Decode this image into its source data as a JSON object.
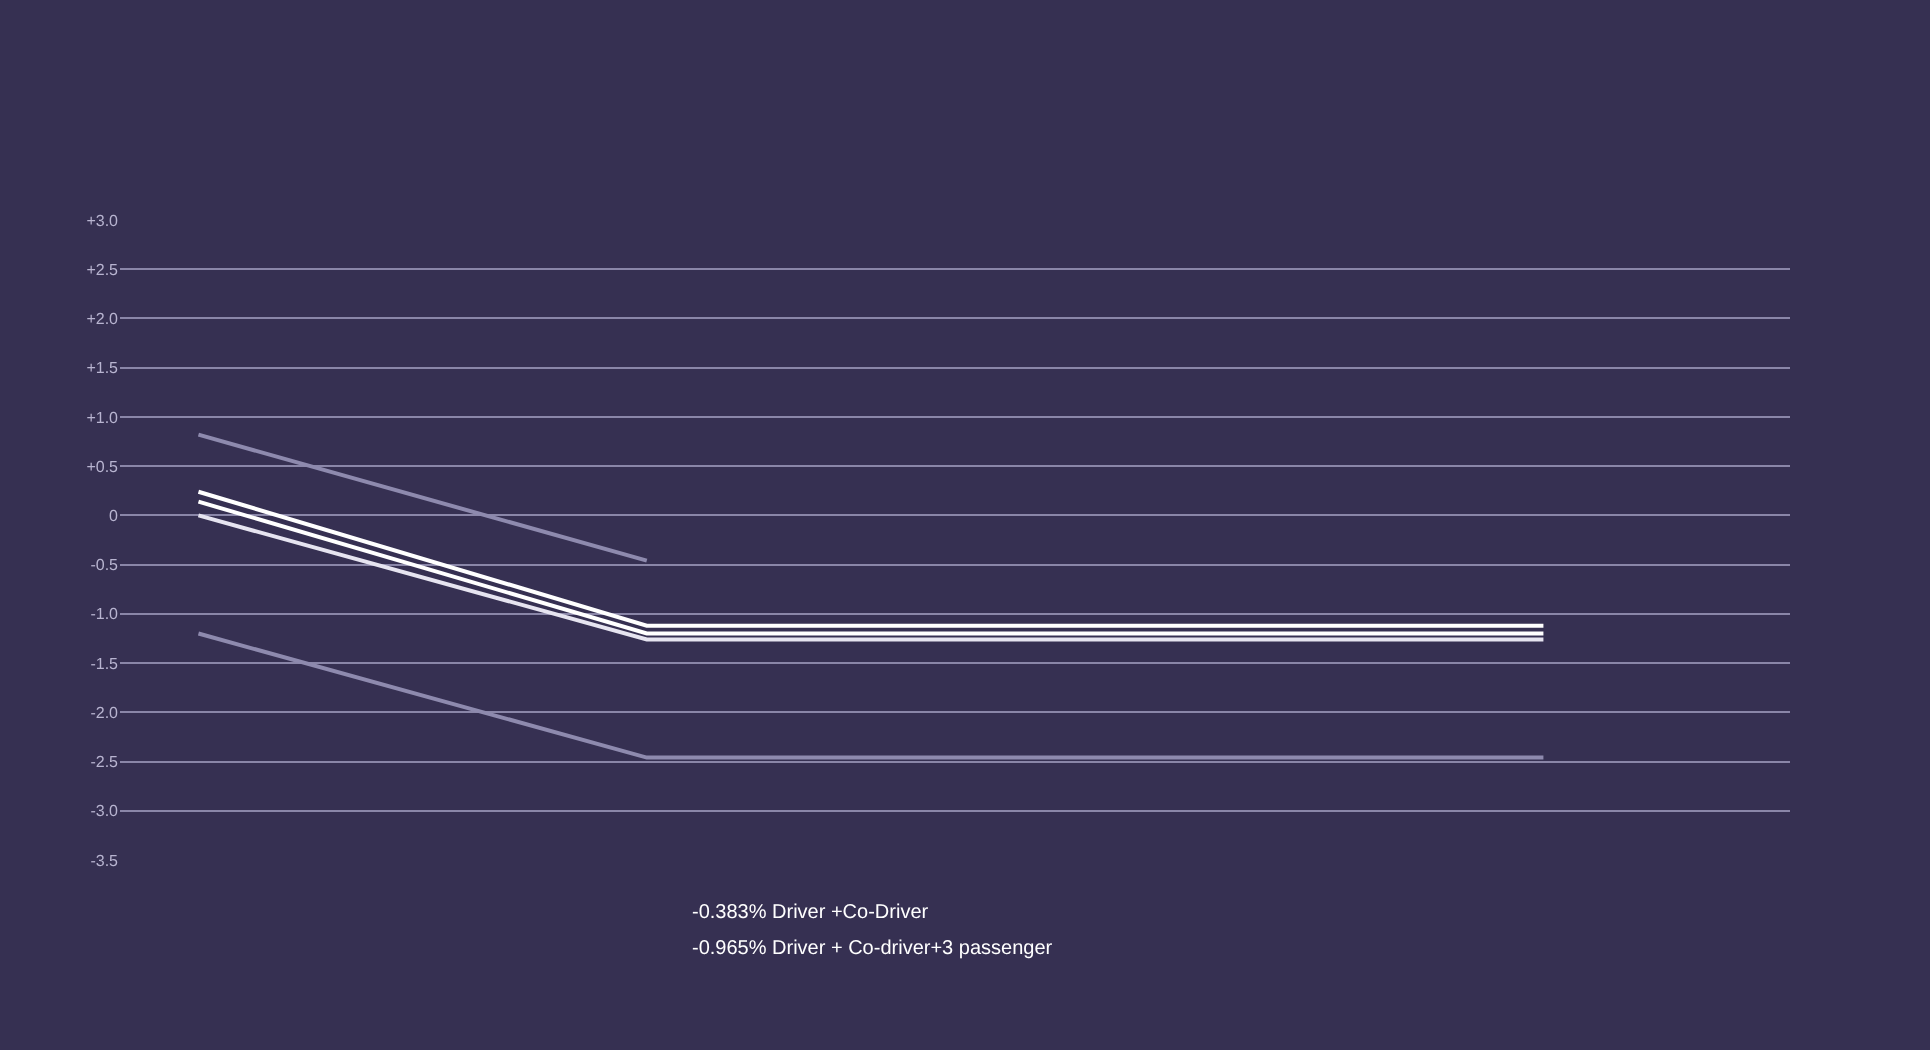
{
  "chart_data": {
    "type": "line",
    "categories": [
      null,
      null,
      null,
      null,
      null,
      null,
      null,
      null,
      null,
      null,
      null,
      null,
      null
    ],
    "series": [
      {
        "color": "#ffffff",
        "values": [
          0.24,
          null,
          null,
          null,
          -1.12,
          -1.12,
          -1.12,
          -1.12,
          -1.12,
          -1.12,
          -1.12,
          -1.12,
          -1.12
        ]
      },
      {
        "color": "#ffffff",
        "values": [
          0.14,
          null,
          null,
          null,
          -1.2,
          -1.2,
          -1.2,
          -1.2,
          -1.2,
          -1.2,
          -1.2,
          -1.2,
          -1.2
        ]
      },
      {
        "color": "#e6e4f0",
        "values": [
          0.0,
          null,
          null,
          null,
          -1.26,
          -1.26,
          -1.26,
          -1.26,
          -1.26,
          -1.26,
          -1.26,
          -1.26,
          -1.26
        ]
      },
      {
        "color": "#8e8aae",
        "values": [
          0.82,
          null,
          null,
          null,
          -0.46,
          null,
          null,
          null,
          null,
          null,
          null,
          null,
          null
        ]
      },
      {
        "color": "#8e8aae",
        "values": [
          -1.2,
          null,
          null,
          null,
          -2.46,
          -2.46,
          -2.46,
          -2.46,
          -2.46,
          -2.46,
          -2.46,
          -2.46,
          -2.46
        ]
      }
    ],
    "ylim": [
      -3.5,
      3
    ],
    "yticks": [
      {
        "value": 3,
        "label": "+3.0"
      },
      {
        "value": 2.5,
        "label": "+2.5"
      },
      {
        "value": 2,
        "label": "+2.0"
      },
      {
        "value": 1.5,
        "label": "+1.5"
      },
      {
        "value": 1,
        "label": "+1.0"
      },
      {
        "value": 0.5,
        "label": "+0.5"
      },
      0,
      -0.5,
      {
        "value": -1,
        "label": "-1.0"
      },
      -1.5,
      {
        "value": -2,
        "label": "-2.0"
      },
      -2.5,
      {
        "value": -3,
        "label": "-3.0"
      },
      -3.5
    ],
    "grid": "y",
    "marker": "none",
    "line_style": "solid",
    "tick_labels": "y",
    "annotations": [
      "-0.383% Driver +Co-Driver",
      "-0.965% Driver + Co-driver+3 passenger"
    ]
  }
}
